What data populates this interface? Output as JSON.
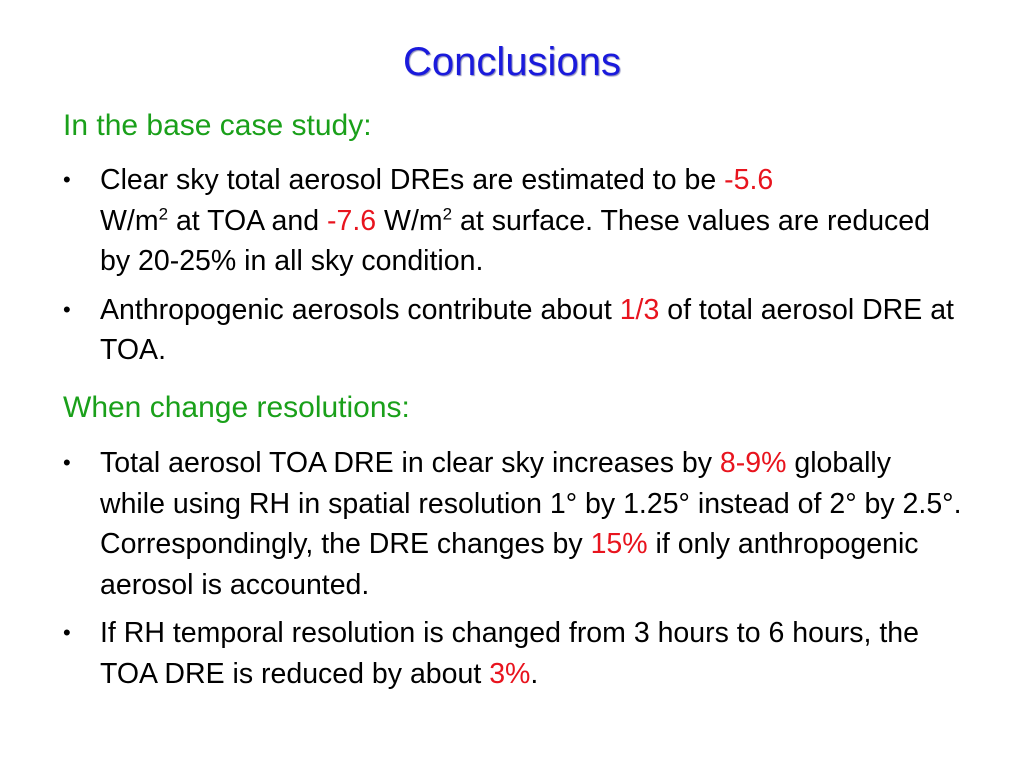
{
  "title": "Conclusions",
  "section1": {
    "heading": "In the base case study:",
    "bullet1": {
      "t1": "Clear sky total aerosol DREs are estimated to be ",
      "v1": "-5.6",
      "t2": "W/m",
      "sup1": "2",
      "t3": " at TOA and ",
      "v2": "-7.6",
      "t4": " W/m",
      "sup2": "2",
      "t5": " at surface. These values are reduced by 20-25% in all sky condition."
    },
    "bullet2": {
      "t1": "Anthropogenic aerosols contribute about ",
      "v1": "1/3",
      "t2": " of total aerosol DRE at TOA."
    }
  },
  "section2": {
    "heading": "When change resolutions:",
    "bullet1": {
      "t1": "Total aerosol TOA DRE in clear sky increases by ",
      "v1": "8-9%",
      "t2": " globally while using RH in spatial resolution 1° by 1.25° instead of 2° by 2.5°. Correspondingly, the DRE changes by ",
      "v2": "15%",
      "t3": " if only anthropogenic aerosol is accounted."
    },
    "bullet2": {
      "t1": "If RH temporal resolution is changed from 3 hours to 6 hours, the TOA DRE is reduced by about ",
      "v1": "3%",
      "t2": "."
    }
  },
  "bullet_symbol": "•",
  "colors": {
    "title": "#1a1adc",
    "heading": "#1aa01a",
    "highlight": "#e8141e",
    "text": "#000000"
  }
}
